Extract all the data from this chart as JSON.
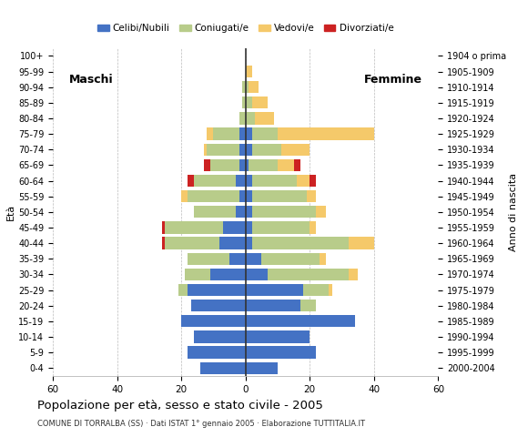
{
  "age_groups": [
    "0-4",
    "5-9",
    "10-14",
    "15-19",
    "20-24",
    "25-29",
    "30-34",
    "35-39",
    "40-44",
    "45-49",
    "50-54",
    "55-59",
    "60-64",
    "65-69",
    "70-74",
    "75-79",
    "80-84",
    "85-89",
    "90-94",
    "95-99",
    "100+"
  ],
  "birth_years": [
    "2000-2004",
    "1995-1999",
    "1990-1994",
    "1985-1989",
    "1980-1984",
    "1975-1979",
    "1970-1974",
    "1965-1969",
    "1960-1964",
    "1955-1959",
    "1950-1954",
    "1945-1949",
    "1940-1944",
    "1935-1939",
    "1930-1934",
    "1925-1929",
    "1920-1924",
    "1915-1919",
    "1910-1914",
    "1905-1909",
    "1904 o prima"
  ],
  "male": {
    "celibi": [
      14,
      18,
      16,
      20,
      17,
      18,
      11,
      5,
      8,
      7,
      3,
      2,
      3,
      2,
      2,
      2,
      0,
      0,
      0,
      0,
      0
    ],
    "coniugati": [
      0,
      0,
      0,
      0,
      0,
      3,
      8,
      13,
      17,
      18,
      13,
      16,
      13,
      9,
      10,
      8,
      2,
      1,
      1,
      0,
      0
    ],
    "vedovi": [
      0,
      0,
      0,
      0,
      0,
      0,
      0,
      0,
      0,
      0,
      0,
      2,
      0,
      0,
      1,
      2,
      0,
      0,
      0,
      0,
      0
    ],
    "divorziati": [
      0,
      0,
      0,
      0,
      0,
      0,
      0,
      0,
      1,
      1,
      0,
      0,
      2,
      2,
      0,
      0,
      0,
      0,
      0,
      0,
      0
    ]
  },
  "female": {
    "nubili": [
      10,
      22,
      20,
      34,
      17,
      18,
      7,
      5,
      2,
      2,
      2,
      2,
      2,
      1,
      2,
      2,
      0,
      0,
      0,
      0,
      0
    ],
    "coniugate": [
      0,
      0,
      0,
      0,
      5,
      8,
      25,
      18,
      30,
      18,
      20,
      17,
      14,
      9,
      9,
      8,
      3,
      2,
      1,
      0,
      0
    ],
    "vedove": [
      0,
      0,
      0,
      0,
      0,
      1,
      3,
      2,
      8,
      2,
      3,
      3,
      4,
      5,
      9,
      30,
      6,
      5,
      3,
      2,
      0
    ],
    "divorziate": [
      0,
      0,
      0,
      0,
      0,
      0,
      0,
      0,
      0,
      0,
      0,
      0,
      2,
      2,
      0,
      0,
      0,
      0,
      0,
      0,
      0
    ]
  },
  "colors": {
    "celibi": "#4472c4",
    "coniugati": "#b8cc8a",
    "vedovi": "#f5c96a",
    "divorziati": "#cc2222"
  },
  "xlim": 60,
  "title": "Popolazione per età, sesso e stato civile - 2005",
  "subtitle": "COMUNE DI TORRALBA (SS) · Dati ISTAT 1° gennaio 2005 · Elaborazione TUTTITALIA.IT",
  "legend_labels": [
    "Celibi/Nubili",
    "Coniugati/e",
    "Vedovi/e",
    "Divorziati/e"
  ],
  "xlabel_left": "Maschi",
  "xlabel_right": "Femmine",
  "ylabel": "Età",
  "ylabel_right": "Anno di nascita"
}
